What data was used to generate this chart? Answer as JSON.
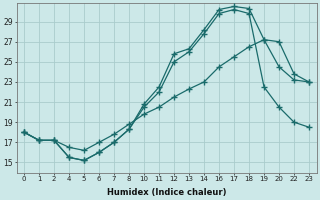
{
  "xlabel": "Humidex (Indice chaleur)",
  "ylabel": "",
  "bg_color": "#cce8e8",
  "grid_color": "#aacccc",
  "line_color": "#1a6b6b",
  "xtick_labels": [
    "0",
    "1",
    "2",
    "4",
    "5",
    "6",
    "7",
    "8",
    "10",
    "11",
    "12",
    "13",
    "14",
    "16",
    "17",
    "18",
    "19",
    "20",
    "22",
    "23"
  ],
  "yticks": [
    15,
    17,
    19,
    21,
    23,
    25,
    27,
    29
  ],
  "ylim": [
    14.0,
    30.8
  ],
  "series": [
    {
      "xi": [
        0,
        1,
        2,
        3,
        4,
        5,
        6,
        7,
        8,
        9,
        10,
        11,
        12,
        13,
        14,
        15,
        16,
        17,
        18,
        19
      ],
      "y": [
        18.0,
        17.2,
        17.2,
        15.5,
        15.2,
        16.0,
        17.0,
        18.3,
        20.8,
        22.5,
        25.8,
        26.3,
        28.2,
        30.2,
        30.5,
        30.3,
        27.2,
        24.5,
        23.2,
        23.0
      ]
    },
    {
      "xi": [
        0,
        1,
        2,
        3,
        4,
        5,
        6,
        7,
        8,
        9,
        10,
        11,
        12,
        13,
        14,
        15,
        16,
        17,
        18,
        19
      ],
      "y": [
        18.0,
        17.2,
        17.2,
        15.5,
        15.2,
        16.0,
        17.0,
        18.3,
        20.5,
        22.0,
        25.0,
        26.0,
        27.8,
        29.8,
        30.2,
        29.8,
        22.5,
        20.5,
        19.0,
        18.5
      ]
    },
    {
      "xi": [
        0,
        1,
        2,
        3,
        4,
        5,
        6,
        7,
        8,
        9,
        10,
        11,
        12,
        13,
        14,
        15,
        16,
        17,
        18,
        19
      ],
      "y": [
        18.0,
        17.2,
        17.2,
        16.5,
        16.2,
        17.0,
        17.8,
        18.8,
        19.8,
        20.5,
        21.5,
        22.3,
        23.0,
        24.5,
        25.5,
        26.5,
        27.2,
        27.0,
        23.8,
        23.0
      ]
    }
  ]
}
